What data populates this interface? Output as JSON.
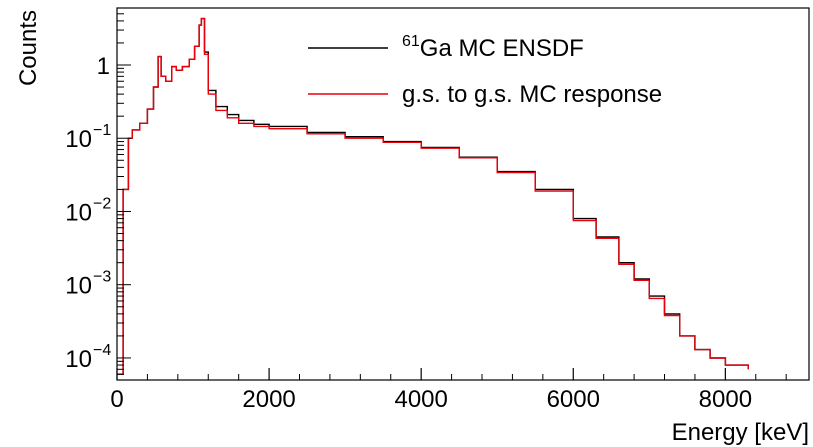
{
  "chart_data": {
    "type": "line",
    "xlabel": "Energy [keV]",
    "ylabel": "Counts",
    "xlim": [
      0,
      9100
    ],
    "ylim": [
      5e-05,
      6
    ],
    "yscale": "log",
    "grid": false,
    "legend_position": "top-right",
    "x_ticks": [
      {
        "value": 0,
        "label": "0"
      },
      {
        "value": 2000,
        "label": "2000"
      },
      {
        "value": 4000,
        "label": "4000"
      },
      {
        "value": 6000,
        "label": "6000"
      },
      {
        "value": 8000,
        "label": "8000"
      }
    ],
    "y_ticks": [
      {
        "value": 1,
        "label": "1",
        "exp": ""
      },
      {
        "value": 0.1,
        "label": "10",
        "exp": "−1"
      },
      {
        "value": 0.01,
        "label": "10",
        "exp": "−2"
      },
      {
        "value": 0.001,
        "label": "10",
        "exp": "−3"
      },
      {
        "value": 0.0001,
        "label": "10",
        "exp": "−4"
      }
    ],
    "series": [
      {
        "name": "Ga MC ENSDF",
        "name_sup": "61",
        "color": "#000000",
        "x": [
          0,
          80,
          150,
          200,
          300,
          400,
          480,
          540,
          580,
          640,
          720,
          780,
          860,
          950,
          1020,
          1080,
          1110,
          1150,
          1200,
          1300,
          1450,
          1600,
          1800,
          2000,
          2500,
          3000,
          3500,
          4000,
          4500,
          5000,
          5500,
          6000,
          6300,
          6600,
          6800,
          7000,
          7200,
          7400,
          7600,
          7800,
          8000,
          8300
        ],
        "y": [
          6e-05,
          0.02,
          0.1,
          0.13,
          0.16,
          0.25,
          0.5,
          1.3,
          0.7,
          0.6,
          0.95,
          0.85,
          0.95,
          1.2,
          1.8,
          3.5,
          4.3,
          1.5,
          0.45,
          0.27,
          0.21,
          0.175,
          0.155,
          0.145,
          0.12,
          0.105,
          0.09,
          0.075,
          0.055,
          0.035,
          0.02,
          0.008,
          0.0045,
          0.002,
          0.0012,
          0.0007,
          0.0004,
          0.0002,
          0.00013,
          0.0001,
          8e-05,
          7e-05
        ]
      },
      {
        "name": "g.s. to g.s. MC response",
        "name_sup": "",
        "color": "#e8000b",
        "x": [
          0,
          80,
          150,
          200,
          300,
          400,
          480,
          540,
          580,
          640,
          720,
          780,
          860,
          950,
          1020,
          1080,
          1110,
          1150,
          1200,
          1300,
          1450,
          1600,
          1800,
          2000,
          2500,
          3000,
          3500,
          4000,
          4500,
          5000,
          5500,
          6000,
          6300,
          6600,
          6800,
          7000,
          7200,
          7400,
          7600,
          7800,
          8000,
          8300
        ],
        "y": [
          6e-05,
          0.02,
          0.1,
          0.13,
          0.16,
          0.25,
          0.5,
          1.3,
          0.7,
          0.6,
          0.95,
          0.85,
          0.95,
          1.2,
          1.8,
          3.5,
          4.3,
          1.4,
          0.4,
          0.24,
          0.19,
          0.16,
          0.145,
          0.135,
          0.115,
          0.1,
          0.088,
          0.073,
          0.054,
          0.034,
          0.019,
          0.0075,
          0.0043,
          0.0019,
          0.00115,
          0.00065,
          0.00038,
          0.0002,
          0.00013,
          0.0001,
          8e-05,
          7e-05
        ]
      }
    ]
  }
}
